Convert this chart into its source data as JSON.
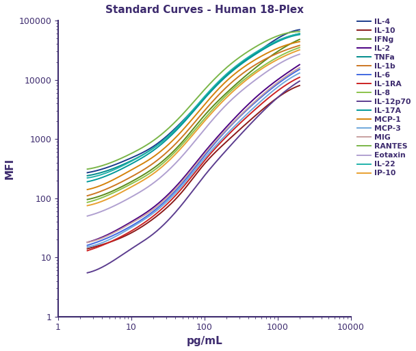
{
  "title": "Standard Curves - Human 18-Plex",
  "xlabel": "pg/mL",
  "ylabel": "MFI",
  "xlim": [
    1,
    10000
  ],
  "ylim": [
    1,
    100000
  ],
  "title_color": "#3d2b6e",
  "axis_color": "#3d2b6e",
  "series": [
    {
      "name": "IL-4",
      "color": "#1a3a8a",
      "x": [
        2.5,
        5,
        10,
        20,
        50,
        100,
        200,
        500,
        1000,
        2000
      ],
      "y": [
        270,
        340,
        480,
        750,
        2000,
        5000,
        12000,
        28000,
        50000,
        70000
      ]
    },
    {
      "name": "IL-10",
      "color": "#8b1a1a",
      "x": [
        2.5,
        5,
        10,
        20,
        50,
        100,
        200,
        500,
        1000,
        2000
      ],
      "y": [
        14,
        18,
        26,
        45,
        130,
        380,
        900,
        2500,
        5000,
        8000
      ]
    },
    {
      "name": "IFNg",
      "color": "#5b8a1a",
      "x": [
        2.5,
        5,
        10,
        20,
        50,
        100,
        200,
        500,
        1000,
        2000
      ],
      "y": [
        95,
        125,
        190,
        320,
        900,
        2500,
        6000,
        16000,
        30000,
        48000
      ]
    },
    {
      "name": "IL-2",
      "color": "#4b0082",
      "x": [
        2.5,
        5,
        10,
        20,
        50,
        100,
        200,
        500,
        1000,
        2000
      ],
      "y": [
        18,
        25,
        40,
        70,
        210,
        600,
        1600,
        5000,
        10000,
        18000
      ]
    },
    {
      "name": "TNFa",
      "color": "#008b8b",
      "x": [
        2.5,
        5,
        10,
        20,
        50,
        100,
        200,
        500,
        1000,
        2000
      ],
      "y": [
        240,
        300,
        430,
        700,
        1900,
        5000,
        12000,
        28000,
        45000,
        60000
      ]
    },
    {
      "name": "IL-1b",
      "color": "#cc7722",
      "x": [
        2.5,
        5,
        10,
        20,
        50,
        100,
        200,
        500,
        1000,
        2000
      ],
      "y": [
        110,
        150,
        230,
        390,
        1100,
        3000,
        7500,
        18000,
        28000,
        38000
      ]
    },
    {
      "name": "IL-6",
      "color": "#4169e1",
      "x": [
        2.5,
        5,
        10,
        20,
        50,
        100,
        200,
        500,
        1000,
        2000
      ],
      "y": [
        16,
        22,
        34,
        60,
        180,
        520,
        1400,
        4200,
        8500,
        15000
      ]
    },
    {
      "name": "IL-1RA",
      "color": "#cc2222",
      "x": [
        2.5,
        5,
        10,
        20,
        50,
        100,
        200,
        500,
        1000,
        2000
      ],
      "y": [
        13,
        18,
        28,
        50,
        150,
        430,
        1100,
        3200,
        6500,
        11000
      ]
    },
    {
      "name": "IL-8",
      "color": "#8bc34a",
      "x": [
        2.5,
        5,
        10,
        20,
        50,
        100,
        200,
        500,
        1000,
        2000
      ],
      "y": [
        85,
        115,
        175,
        290,
        820,
        2200,
        5500,
        14000,
        24000,
        35000
      ]
    },
    {
      "name": "IL-12p70",
      "color": "#5c3d8f",
      "x": [
        2.5,
        5,
        10,
        20,
        50,
        100,
        200,
        500,
        1000,
        2000
      ],
      "y": [
        5.5,
        8,
        14,
        25,
        80,
        240,
        650,
        2200,
        5000,
        9500
      ]
    },
    {
      "name": "IL-17A",
      "color": "#009999",
      "x": [
        2.5,
        5,
        10,
        20,
        50,
        100,
        200,
        500,
        1000,
        2000
      ],
      "y": [
        190,
        250,
        380,
        640,
        1800,
        4800,
        11500,
        27000,
        44000,
        58000
      ]
    },
    {
      "name": "MCP-1",
      "color": "#d4820a",
      "x": [
        2.5,
        5,
        10,
        20,
        50,
        100,
        200,
        500,
        1000,
        2000
      ],
      "y": [
        140,
        190,
        300,
        500,
        1400,
        3800,
        9500,
        22000,
        34000,
        44000
      ]
    },
    {
      "name": "MCP-3",
      "color": "#6fa8dc",
      "x": [
        2.5,
        5,
        10,
        20,
        50,
        100,
        200,
        500,
        1000,
        2000
      ],
      "y": [
        15,
        20,
        32,
        56,
        165,
        470,
        1200,
        3600,
        7500,
        13000
      ]
    },
    {
      "name": "MIG",
      "color": "#c8a0a0",
      "x": [
        2.5,
        5,
        10,
        20,
        50,
        100,
        200,
        500,
        1000,
        2000
      ],
      "y": [
        18,
        24,
        38,
        65,
        195,
        560,
        1450,
        4400,
        9000,
        16000
      ]
    },
    {
      "name": "RANTES",
      "color": "#7ab648",
      "x": [
        2.5,
        5,
        10,
        20,
        50,
        100,
        200,
        500,
        1000,
        2000
      ],
      "y": [
        310,
        390,
        570,
        940,
        2600,
        6800,
        16000,
        36000,
        55000,
        65000
      ]
    },
    {
      "name": "Eotaxin",
      "color": "#b0a0d0",
      "x": [
        2.5,
        5,
        10,
        20,
        50,
        100,
        200,
        500,
        1000,
        2000
      ],
      "y": [
        50,
        68,
        105,
        180,
        520,
        1450,
        3800,
        10000,
        18000,
        27000
      ]
    },
    {
      "name": "IL-22",
      "color": "#20b2aa",
      "x": [
        2.5,
        5,
        10,
        20,
        50,
        100,
        200,
        500,
        1000,
        2000
      ],
      "y": [
        220,
        280,
        420,
        700,
        1950,
        5200,
        12500,
        29000,
        46000,
        60000
      ]
    },
    {
      "name": "IP-10",
      "color": "#e8a030",
      "x": [
        2.5,
        5,
        10,
        20,
        50,
        100,
        200,
        500,
        1000,
        2000
      ],
      "y": [
        75,
        100,
        155,
        260,
        740,
        2000,
        5000,
        13000,
        22000,
        32000
      ]
    }
  ]
}
